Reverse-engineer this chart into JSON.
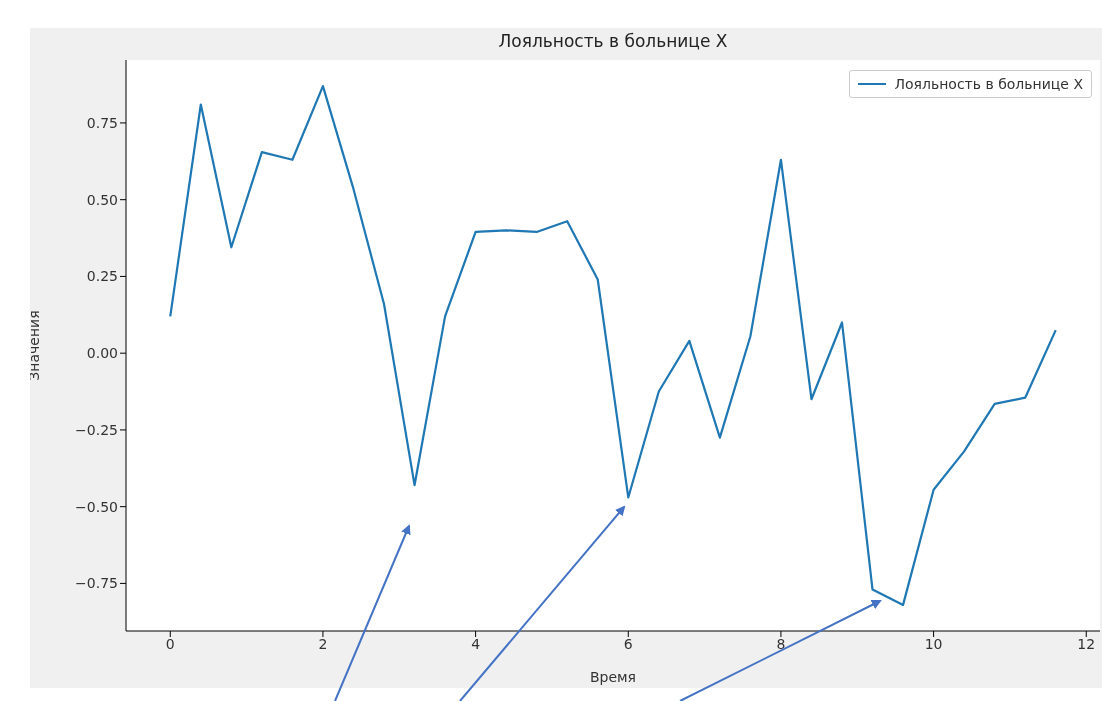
{
  "chart_data": {
    "type": "line",
    "title": "Лояльность в больнице X",
    "xlabel": "Время",
    "ylabel": "Значения",
    "x": [
      0,
      0.4,
      0.8,
      1.2,
      1.6,
      2.0,
      2.4,
      2.8,
      3.2,
      3.6,
      4.0,
      4.4,
      4.8,
      5.2,
      5.6,
      6.0,
      6.4,
      6.8,
      7.2,
      7.6,
      8.0,
      8.4,
      8.8,
      9.2,
      9.6,
      10.0,
      10.4,
      10.8,
      11.2,
      11.6
    ],
    "series": [
      {
        "name": "Лояльность в больнице X",
        "color": "#1f77b4",
        "values": [
          0.12,
          0.81,
          0.345,
          0.655,
          0.63,
          0.87,
          0.535,
          0.16,
          -0.43,
          0.12,
          0.395,
          0.4,
          0.395,
          0.43,
          0.24,
          -0.47,
          -0.125,
          0.04,
          -0.275,
          0.055,
          0.63,
          -0.15,
          0.1,
          -0.77,
          -0.82,
          -0.445,
          -0.32,
          -0.165,
          -0.145,
          0.075
        ]
      }
    ],
    "xlim": [
      -0.58,
      12.18
    ],
    "xticks": [
      0,
      2,
      4,
      6,
      8,
      10,
      12
    ],
    "ylim": [
      -0.905,
      0.955
    ],
    "yticks": [
      {
        "value": -0.75,
        "label": "−0.75"
      },
      {
        "value": -0.5,
        "label": "−0.50"
      },
      {
        "value": -0.25,
        "label": "−0.25"
      },
      {
        "value": 0,
        "label": "0.00"
      },
      {
        "value": 0.25,
        "label": "0.25"
      },
      {
        "value": 0.5,
        "label": "0.50"
      },
      {
        "value": 0.75,
        "label": "0.75"
      }
    ],
    "grid": false,
    "legend": "top right",
    "marker": "none",
    "line_style": "solid"
  }
}
